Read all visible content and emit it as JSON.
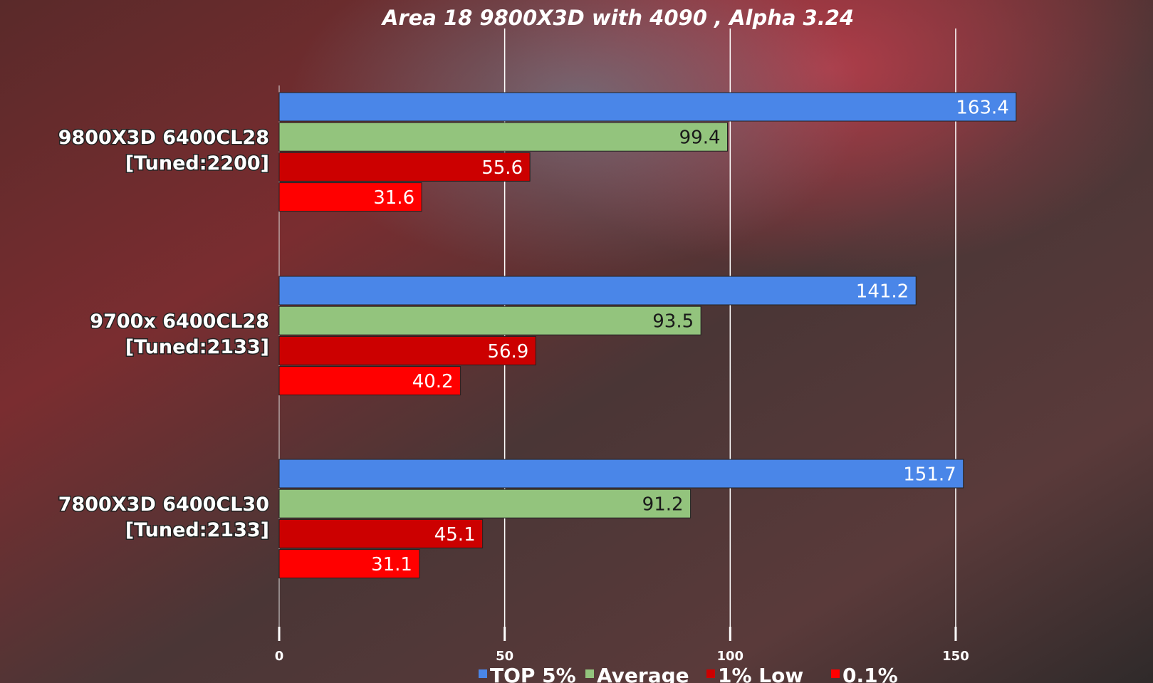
{
  "chart_data": {
    "type": "bar",
    "orientation": "horizontal",
    "title": "Area 18 9800X3D with 4090 , Alpha 3.24",
    "categories": [
      "9800X3D 6400CL28\n[Tuned:2200]",
      "9700x 6400CL28\n[Tuned:2133]",
      "7800X3D 6400CL30\n[Tuned:2133]"
    ],
    "series": [
      {
        "name": "TOP 5%",
        "color": "#4a86e8",
        "values": [
          163.4,
          141.2,
          151.7
        ]
      },
      {
        "name": "Average",
        "color": "#93c47d",
        "values": [
          99.4,
          93.5,
          91.2
        ]
      },
      {
        "name": "1% Low",
        "color": "#cc0000",
        "values": [
          55.6,
          56.9,
          45.1
        ]
      },
      {
        "name": "0.1%",
        "color": "#ff0000",
        "values": [
          31.6,
          40.2,
          31.1
        ]
      }
    ],
    "xlim": [
      0,
      194
    ],
    "xticks": [
      0,
      50,
      100,
      150
    ],
    "grid": true,
    "legend": "bottom"
  }
}
